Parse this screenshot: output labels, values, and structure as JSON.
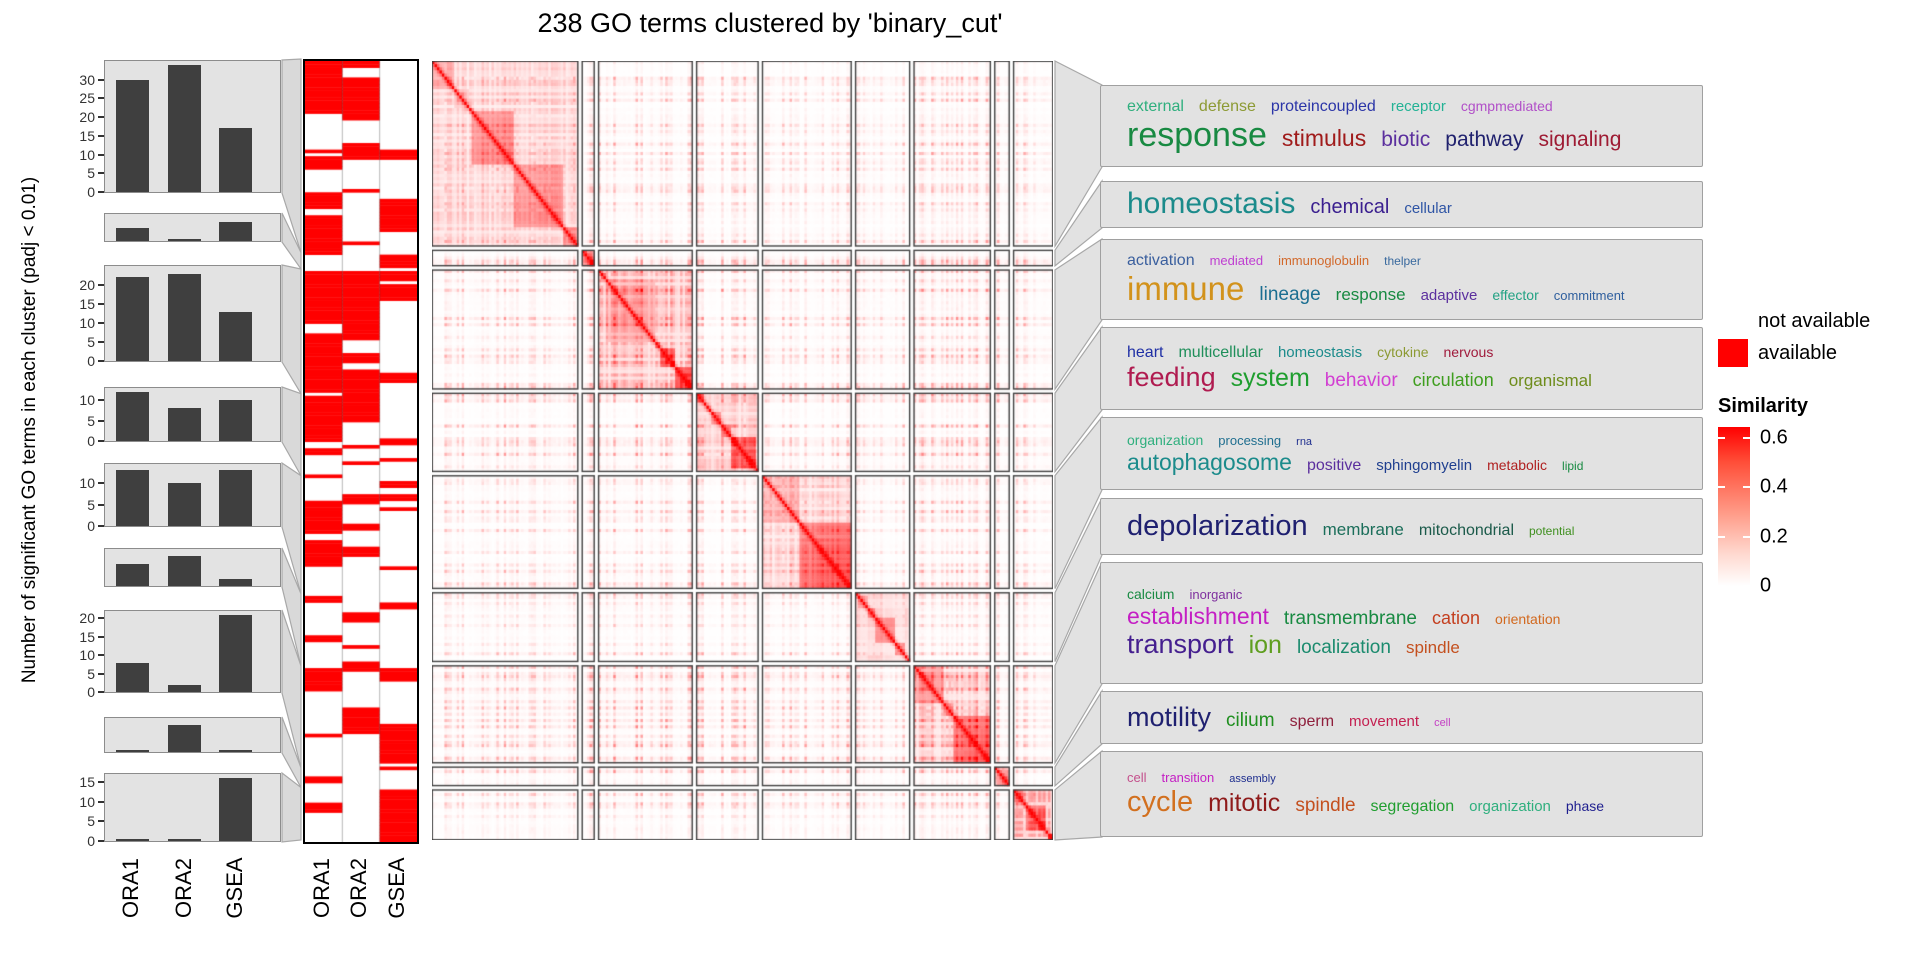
{
  "title": "238 GO terms clustered by 'binary_cut'",
  "y_axis_label": "Number of significant GO terms in each cluster (padj < 0.01)",
  "methods": [
    "ORA1",
    "ORA2",
    "GSEA"
  ],
  "legend_availability": {
    "items": [
      {
        "label": "not available",
        "color": "#FFFFFF"
      },
      {
        "label": "available",
        "color": "#FF0000"
      }
    ]
  },
  "legend_similarity": {
    "title": "Similarity",
    "tick_labels": [
      "0.6",
      "0.4",
      "0.2",
      "0"
    ],
    "tick_values": [
      0.6,
      0.4,
      0.2,
      0
    ],
    "max_color": "#FF0000",
    "min_color": "#FFFFFF"
  },
  "chart_data": {
    "type": "heatmap",
    "title": "238 GO terms clustered by 'binary_cut'",
    "n_terms": 238,
    "clustering_method": "binary_cut",
    "methods": [
      "ORA1",
      "ORA2",
      "GSEA"
    ],
    "similarity_scale": {
      "min": 0,
      "max": 0.6,
      "ticks": [
        0.6,
        0.4,
        0.2,
        0
      ]
    },
    "bar_color": "#3F3F3F",
    "heat_max_color": "#FF0000",
    "available_color": "#FF0000",
    "clusters": [
      {
        "id": 1,
        "label": "response",
        "size": 59,
        "significant_counts": [
          30,
          34,
          17
        ],
        "axis_ticks": [
          0,
          5,
          10,
          15,
          20,
          25,
          30
        ],
        "axis_max": 35,
        "block_similarity": 0.28
      },
      {
        "id": 2,
        "label": "homeostasis",
        "size": 5,
        "significant_counts": [
          2,
          0,
          3
        ],
        "axis_ticks": [],
        "axis_max": 4.2,
        "block_similarity": 0.75
      },
      {
        "id": 3,
        "label": "immune",
        "size": 38,
        "significant_counts": [
          22,
          23,
          13
        ],
        "axis_ticks": [
          0,
          5,
          10,
          15,
          20
        ],
        "axis_max": 25,
        "block_similarity": 0.45
      },
      {
        "id": 4,
        "label": "feeding",
        "size": 25,
        "significant_counts": [
          12,
          8,
          10
        ],
        "axis_ticks": [
          0,
          5,
          10
        ],
        "axis_max": 13,
        "block_similarity": 0.3
      },
      {
        "id": 5,
        "label": "autophagosome",
        "size": 36,
        "significant_counts": [
          13,
          10,
          13
        ],
        "axis_ticks": [
          0,
          5,
          10
        ],
        "axis_max": 14.5,
        "block_similarity": 0.28
      },
      {
        "id": 6,
        "label": "depolarization",
        "size": 22,
        "significant_counts": [
          3,
          4,
          1
        ],
        "axis_ticks": [],
        "axis_max": 5,
        "block_similarity": 0.22
      },
      {
        "id": 7,
        "label": "transport",
        "size": 31,
        "significant_counts": [
          8,
          2,
          21
        ],
        "axis_ticks": [
          0,
          5,
          10,
          15,
          20
        ],
        "axis_max": 22,
        "block_similarity": 0.3
      },
      {
        "id": 8,
        "label": "motility",
        "size": 6,
        "significant_counts": [
          0,
          4,
          0
        ],
        "axis_ticks": [],
        "axis_max": 5,
        "block_similarity": 0.55
      },
      {
        "id": 9,
        "label": "cycle",
        "size": 16,
        "significant_counts": [
          0,
          0,
          16
        ],
        "axis_ticks": [
          0,
          5,
          10,
          15
        ],
        "axis_max": 17,
        "block_similarity": 0.5
      }
    ]
  },
  "wordclouds": [
    {
      "cluster": 1,
      "rows": [
        [
          {
            "t": "external",
            "c": "#2FAF7E",
            "s": 16
          },
          {
            "t": "defense",
            "c": "#8C9A33",
            "s": 16
          },
          {
            "t": "proteincoupled",
            "c": "#2B35A8",
            "s": 16
          },
          {
            "t": "receptor",
            "c": "#23B295",
            "s": 15
          },
          {
            "t": "cgmpmediated",
            "c": "#B14FC8",
            "s": 14
          }
        ],
        [
          {
            "t": "response",
            "c": "#188A42",
            "s": 34
          },
          {
            "t": "stimulus",
            "c": "#A01B1B",
            "s": 23
          },
          {
            "t": "biotic",
            "c": "#5B2F9E",
            "s": 21
          },
          {
            "t": "pathway",
            "c": "#20216E",
            "s": 21
          },
          {
            "t": "signaling",
            "c": "#9E1B33",
            "s": 21
          }
        ]
      ]
    },
    {
      "cluster": 2,
      "rows": [
        [
          {
            "t": "homeostasis",
            "c": "#1B8B8B",
            "s": 30
          },
          {
            "t": "chemical",
            "c": "#3A1F8F",
            "s": 20
          },
          {
            "t": "cellular",
            "c": "#2F55A5",
            "s": 15
          }
        ]
      ]
    },
    {
      "cluster": 3,
      "rows": [
        [
          {
            "t": "activation",
            "c": "#3A5F9E",
            "s": 16
          },
          {
            "t": "mediated",
            "c": "#BF3FD1",
            "s": 13
          },
          {
            "t": "immunoglobulin",
            "c": "#D2692B",
            "s": 13
          },
          {
            "t": "thelper",
            "c": "#39699E",
            "s": 12
          }
        ],
        [
          {
            "t": "immune",
            "c": "#D2921B",
            "s": 33
          },
          {
            "t": "lineage",
            "c": "#1B6E91",
            "s": 19
          },
          {
            "t": "response",
            "c": "#188A42",
            "s": 17
          },
          {
            "t": "adaptive",
            "c": "#5B2F9E",
            "s": 15
          },
          {
            "t": "effector",
            "c": "#23A284",
            "s": 14
          },
          {
            "t": "commitment",
            "c": "#2F5F9E",
            "s": 13
          }
        ]
      ]
    },
    {
      "cluster": 4,
      "rows": [
        [
          {
            "t": "heart",
            "c": "#1F2FA5",
            "s": 16
          },
          {
            "t": "multicellular",
            "c": "#1F8F5A",
            "s": 16
          },
          {
            "t": "homeostasis",
            "c": "#1B8B8B",
            "s": 15
          },
          {
            "t": "cytokine",
            "c": "#8C9A33",
            "s": 14
          },
          {
            "t": "nervous",
            "c": "#A01B3C",
            "s": 14
          }
        ],
        [
          {
            "t": "feeding",
            "c": "#B01B50",
            "s": 27
          },
          {
            "t": "system",
            "c": "#1F9E2F",
            "s": 25
          },
          {
            "t": "behavior",
            "c": "#D23FD2",
            "s": 19
          },
          {
            "t": "circulation",
            "c": "#3F9E1F",
            "s": 18
          },
          {
            "t": "organismal",
            "c": "#6E8C1B",
            "s": 17
          }
        ]
      ]
    },
    {
      "cluster": 5,
      "rows": [
        [
          {
            "t": "organization",
            "c": "#2FAF7E",
            "s": 14
          },
          {
            "t": "processing",
            "c": "#1F6E8F",
            "s": 13
          },
          {
            "t": "rna",
            "c": "#1F2F8F",
            "s": 11
          }
        ],
        [
          {
            "t": "autophagosome",
            "c": "#1B8B8B",
            "s": 23
          },
          {
            "t": "positive",
            "c": "#5B2F9E",
            "s": 16
          },
          {
            "t": "sphingomyelin",
            "c": "#1F3F8F",
            "s": 15
          },
          {
            "t": "metabolic",
            "c": "#B02020",
            "s": 14
          },
          {
            "t": "lipid",
            "c": "#188A42",
            "s": 12
          }
        ]
      ]
    },
    {
      "cluster": 6,
      "rows": [
        [
          {
            "t": "depolarization",
            "c": "#1F2070",
            "s": 29
          },
          {
            "t": "membrane",
            "c": "#1B6E5A",
            "s": 17
          },
          {
            "t": "mitochondrial",
            "c": "#1B5A4A",
            "s": 16
          },
          {
            "t": "potential",
            "c": "#3F8F1F",
            "s": 12
          }
        ]
      ]
    },
    {
      "cluster": 7,
      "rows": [
        [
          {
            "t": "calcium",
            "c": "#188A42",
            "s": 14
          },
          {
            "t": "inorganic",
            "c": "#7E2F9E",
            "s": 13
          }
        ],
        [
          {
            "t": "establishment",
            "c": "#C41FC4",
            "s": 23
          },
          {
            "t": "transmembrane",
            "c": "#188A42",
            "s": 19
          },
          {
            "t": "cation",
            "c": "#C43F1F",
            "s": 18
          },
          {
            "t": "orientation",
            "c": "#D2691F",
            "s": 14
          }
        ],
        [
          {
            "t": "transport",
            "c": "#451F8F",
            "s": 27
          },
          {
            "t": "ion",
            "c": "#5F9E1F",
            "s": 25
          },
          {
            "t": "localization",
            "c": "#1B8B6E",
            "s": 19
          },
          {
            "t": "spindle",
            "c": "#C4501F",
            "s": 17
          }
        ]
      ]
    },
    {
      "cluster": 8,
      "rows": [
        [
          {
            "t": "motility",
            "c": "#1F2070",
            "s": 27
          },
          {
            "t": "cilium",
            "c": "#1F8F1F",
            "s": 19
          },
          {
            "t": "sperm",
            "c": "#8F1F3C",
            "s": 16
          },
          {
            "t": "movement",
            "c": "#C41F50",
            "s": 15
          },
          {
            "t": "cell",
            "c": "#C43FC4",
            "s": 11
          }
        ]
      ]
    },
    {
      "cluster": 9,
      "rows": [
        [
          {
            "t": "cell",
            "c": "#C4508C",
            "s": 13
          },
          {
            "t": "transition",
            "c": "#C41FC4",
            "s": 13
          },
          {
            "t": "assembly",
            "c": "#1F2F8F",
            "s": 11
          }
        ],
        [
          {
            "t": "cycle",
            "c": "#D2701F",
            "s": 29
          },
          {
            "t": "mitotic",
            "c": "#8F1B1B",
            "s": 25
          },
          {
            "t": "spindle",
            "c": "#C4501F",
            "s": 19
          },
          {
            "t": "segregation",
            "c": "#1F9E2F",
            "s": 16
          },
          {
            "t": "organization",
            "c": "#2FAF7E",
            "s": 15
          },
          {
            "t": "phase",
            "c": "#1F1F8F",
            "s": 14
          }
        ]
      ]
    }
  ]
}
